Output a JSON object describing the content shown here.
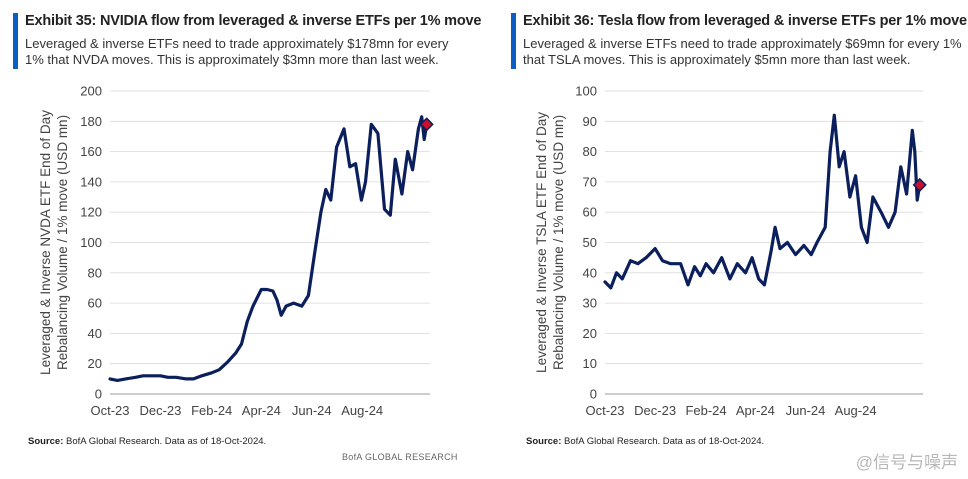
{
  "colors": {
    "accent": "#0b5fc4",
    "line": "#0b1f5c",
    "marker_fill": "#c8102e",
    "marker_stroke": "#0b1f5c",
    "grid": "#d9d9d9"
  },
  "watermark": "@信号与噪声",
  "chart_data": [
    {
      "type": "line",
      "title": "Exhibit 35: NVIDIA flow from leveraged & inverse ETFs per 1% move",
      "subtitle": "Leveraged & inverse ETFs need to trade approximately $178mn for every 1% that NVDA moves. This is approximately $3mn more than last week.",
      "ylabel_lines": [
        "Leveraged & Inverse NVDA ETF End of Day",
        "Rebalancing Volume / 1% move (USD mn)"
      ],
      "xlabel": "",
      "ylim": [
        0,
        200
      ],
      "yticks": [
        0,
        20,
        40,
        60,
        80,
        100,
        120,
        140,
        160,
        180,
        200
      ],
      "xlim": [
        "2023-10-01",
        "2024-10-22"
      ],
      "xticks": [
        {
          "label": "Oct-23",
          "date": "2023-10-01"
        },
        {
          "label": "Dec-23",
          "date": "2023-12-01"
        },
        {
          "label": "Feb-24",
          "date": "2024-02-01"
        },
        {
          "label": "Apr-24",
          "date": "2024-04-01"
        },
        {
          "label": "Jun-24",
          "date": "2024-06-01"
        },
        {
          "label": "Aug-24",
          "date": "2024-08-01"
        }
      ],
      "grid": "horizontal",
      "series": [
        {
          "x": [
            "2023-10-01",
            "2023-10-10",
            "2023-10-20",
            "2023-11-01",
            "2023-11-10",
            "2023-11-20",
            "2023-12-01",
            "2023-12-10",
            "2023-12-20",
            "2024-01-01",
            "2024-01-10",
            "2024-01-20",
            "2024-02-01",
            "2024-02-10",
            "2024-02-20",
            "2024-03-01",
            "2024-03-08",
            "2024-03-15",
            "2024-03-22",
            "2024-04-01",
            "2024-04-08",
            "2024-04-15",
            "2024-04-20",
            "2024-04-25",
            "2024-05-01",
            "2024-05-10",
            "2024-05-20",
            "2024-05-28",
            "2024-06-05",
            "2024-06-12",
            "2024-06-18",
            "2024-06-24",
            "2024-07-01",
            "2024-07-10",
            "2024-07-17",
            "2024-07-24",
            "2024-07-31",
            "2024-08-05",
            "2024-08-12",
            "2024-08-20",
            "2024-08-28",
            "2024-09-04",
            "2024-09-10",
            "2024-09-18",
            "2024-09-25",
            "2024-10-01",
            "2024-10-08",
            "2024-10-12",
            "2024-10-15",
            "2024-10-18"
          ],
          "values": [
            10,
            9,
            10,
            11,
            12,
            12,
            12,
            11,
            11,
            10,
            10,
            12,
            14,
            16,
            21,
            27,
            33,
            48,
            58,
            69,
            69,
            68,
            62,
            52,
            58,
            60,
            58,
            65,
            95,
            120,
            135,
            128,
            163,
            175,
            150,
            152,
            128,
            140,
            178,
            172,
            122,
            118,
            155,
            132,
            160,
            148,
            175,
            183,
            168,
            178
          ]
        }
      ],
      "markers": [
        {
          "x": "2024-10-18",
          "y": 178,
          "shape": "diamond"
        }
      ],
      "source": "Source: BofA Global Research.  Data as of 18-Oct-2024.",
      "credit": "BofA GLOBAL RESEARCH"
    },
    {
      "type": "line",
      "title": "Exhibit 36: Tesla flow from leveraged & inverse ETFs per 1% move",
      "subtitle": "Leveraged & inverse ETFs need to trade approximately $69mn for every 1% that TSLA moves. This is approximately $5mn more than last week.",
      "ylabel_lines": [
        "Leveraged & Inverse TSLA  ETF End of Day",
        "Rebalancing Volume / 1% move (USD mn)"
      ],
      "xlabel": "",
      "ylim": [
        0,
        100
      ],
      "yticks": [
        0,
        10,
        20,
        30,
        40,
        50,
        60,
        70,
        80,
        90,
        100
      ],
      "xlim": [
        "2023-10-01",
        "2024-10-22"
      ],
      "xticks": [
        {
          "label": "Oct-23",
          "date": "2023-10-01"
        },
        {
          "label": "Dec-23",
          "date": "2023-12-01"
        },
        {
          "label": "Feb-24",
          "date": "2024-02-01"
        },
        {
          "label": "Apr-24",
          "date": "2024-04-01"
        },
        {
          "label": "Jun-24",
          "date": "2024-06-01"
        },
        {
          "label": "Aug-24",
          "date": "2024-08-01"
        }
      ],
      "grid": "horizontal",
      "series": [
        {
          "x": [
            "2023-10-01",
            "2023-10-08",
            "2023-10-15",
            "2023-10-22",
            "2023-11-01",
            "2023-11-10",
            "2023-11-20",
            "2023-12-01",
            "2023-12-10",
            "2023-12-20",
            "2024-01-01",
            "2024-01-10",
            "2024-01-18",
            "2024-01-25",
            "2024-02-01",
            "2024-02-10",
            "2024-02-20",
            "2024-03-01",
            "2024-03-10",
            "2024-03-20",
            "2024-03-28",
            "2024-04-05",
            "2024-04-12",
            "2024-04-20",
            "2024-04-25",
            "2024-05-01",
            "2024-05-10",
            "2024-05-20",
            "2024-05-30",
            "2024-06-08",
            "2024-06-15",
            "2024-06-25",
            "2024-07-01",
            "2024-07-06",
            "2024-07-12",
            "2024-07-18",
            "2024-07-25",
            "2024-08-01",
            "2024-08-08",
            "2024-08-15",
            "2024-08-22",
            "2024-09-01",
            "2024-09-10",
            "2024-09-18",
            "2024-09-25",
            "2024-10-02",
            "2024-10-09",
            "2024-10-12",
            "2024-10-15",
            "2024-10-18"
          ],
          "values": [
            37,
            35,
            40,
            38,
            44,
            43,
            45,
            48,
            44,
            43,
            43,
            36,
            42,
            39,
            43,
            40,
            45,
            38,
            43,
            40,
            45,
            38,
            36,
            47,
            55,
            48,
            50,
            46,
            49,
            46,
            50,
            55,
            80,
            92,
            75,
            80,
            65,
            72,
            55,
            50,
            65,
            60,
            55,
            60,
            75,
            66,
            87,
            80,
            64,
            69
          ]
        }
      ],
      "markers": [
        {
          "x": "2024-10-18",
          "y": 69,
          "shape": "diamond"
        }
      ],
      "source": "Source: BofA Global Research.  Data as of 18-Oct-2024.",
      "credit": "BofA GLOBAL RESEARCH"
    }
  ]
}
